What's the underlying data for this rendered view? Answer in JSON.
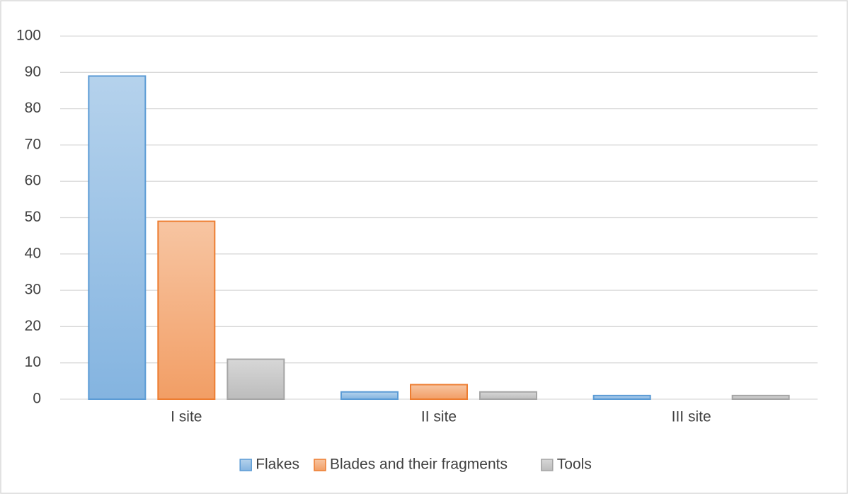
{
  "chart_data": {
    "type": "bar",
    "categories": [
      "I site",
      "II site",
      "III site"
    ],
    "series": [
      {
        "name": "Flakes",
        "color": "#5b9bd5",
        "values": [
          89,
          2,
          1
        ]
      },
      {
        "name": "Blades and their fragments",
        "color": "#ed7d31",
        "values": [
          49,
          4,
          0
        ]
      },
      {
        "name": "Tools",
        "color": "#a5a5a5",
        "values": [
          11,
          2,
          1
        ]
      }
    ],
    "ylim": [
      0,
      100
    ],
    "yticks": [
      0,
      10,
      20,
      30,
      40,
      50,
      60,
      70,
      80,
      90,
      100
    ],
    "grid": true,
    "legend": "bottom"
  }
}
